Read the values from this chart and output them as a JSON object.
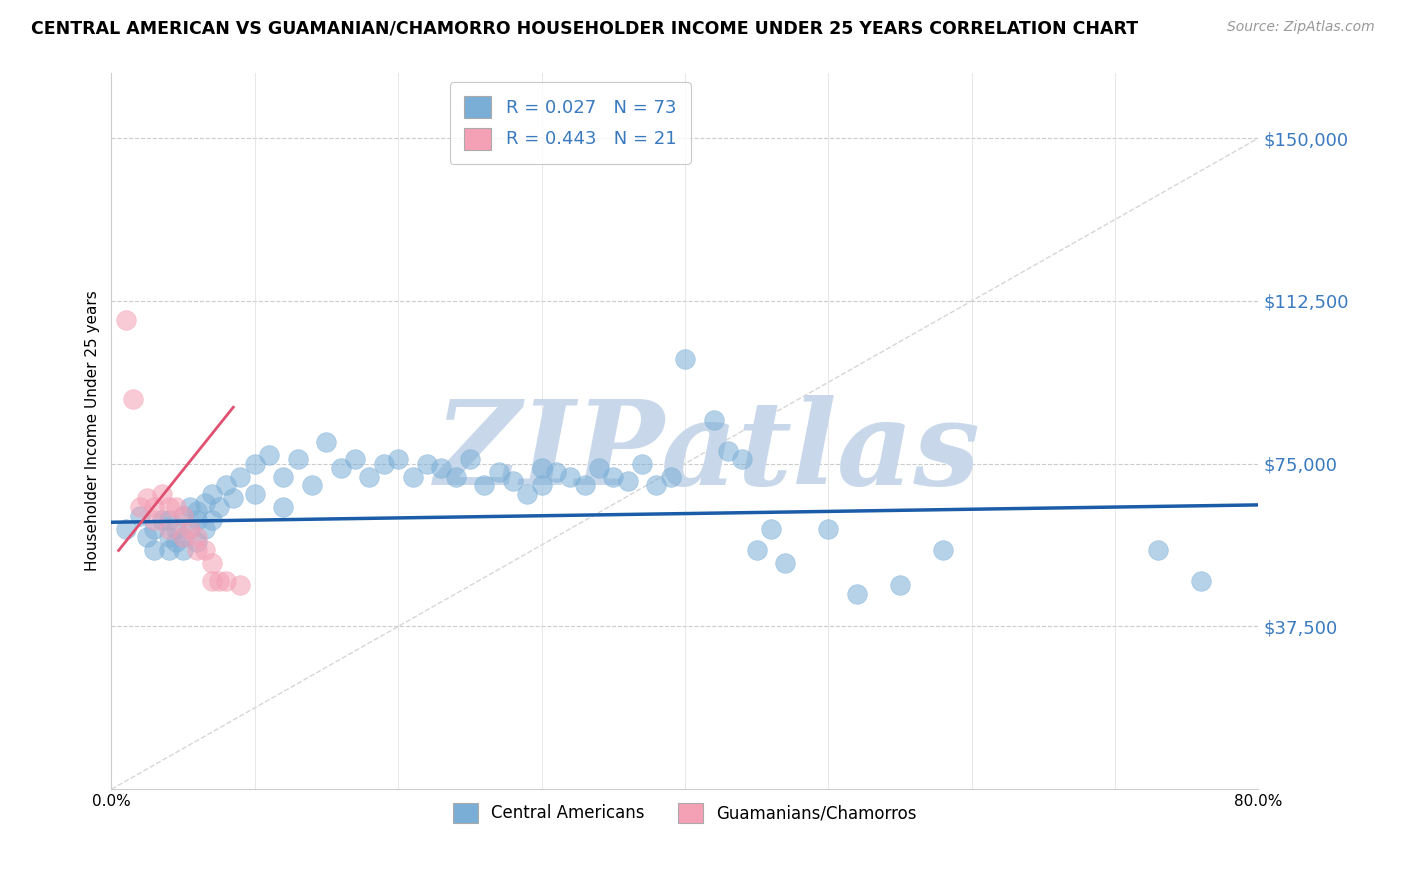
{
  "title": "CENTRAL AMERICAN VS GUAMANIAN/CHAMORRO HOUSEHOLDER INCOME UNDER 25 YEARS CORRELATION CHART",
  "source": "Source: ZipAtlas.com",
  "ylabel": "Householder Income Under 25 years",
  "xlim": [
    0.0,
    0.8
  ],
  "ylim": [
    0,
    165000
  ],
  "yticks": [
    0,
    37500,
    75000,
    112500,
    150000
  ],
  "ytick_labels": [
    "",
    "$37,500",
    "$75,000",
    "$112,500",
    "$150,000"
  ],
  "xticks": [
    0.0,
    0.1,
    0.2,
    0.3,
    0.4,
    0.5,
    0.6,
    0.7,
    0.8
  ],
  "xtick_labels": [
    "0.0%",
    "",
    "",
    "",
    "",
    "",
    "",
    "",
    "80.0%"
  ],
  "blue_R": 0.027,
  "blue_N": 73,
  "pink_R": 0.443,
  "pink_N": 21,
  "blue_color": "#7aaed6",
  "pink_color": "#f4a0b5",
  "trend_blue_color": "#1a5ca8",
  "trend_pink_color": "#e05070",
  "text_blue": "#3a7abf",
  "watermark_text": "ZIPatlas",
  "watermark_color": "#c8d8ea",
  "blue_scatter_x": [
    0.01,
    0.02,
    0.025,
    0.03,
    0.03,
    0.035,
    0.04,
    0.04,
    0.04,
    0.045,
    0.045,
    0.05,
    0.05,
    0.05,
    0.055,
    0.055,
    0.06,
    0.06,
    0.06,
    0.065,
    0.065,
    0.07,
    0.07,
    0.075,
    0.08,
    0.085,
    0.09,
    0.1,
    0.1,
    0.11,
    0.12,
    0.12,
    0.13,
    0.14,
    0.15,
    0.16,
    0.17,
    0.18,
    0.19,
    0.2,
    0.21,
    0.22,
    0.23,
    0.24,
    0.25,
    0.26,
    0.27,
    0.28,
    0.29,
    0.3,
    0.3,
    0.31,
    0.32,
    0.33,
    0.34,
    0.35,
    0.36,
    0.37,
    0.38,
    0.39,
    0.4,
    0.42,
    0.43,
    0.44,
    0.45,
    0.46,
    0.47,
    0.5,
    0.52,
    0.55,
    0.58,
    0.73,
    0.76
  ],
  "blue_scatter_y": [
    60000,
    63000,
    58000,
    60000,
    55000,
    62000,
    58000,
    55000,
    62000,
    60000,
    57000,
    63000,
    58000,
    55000,
    65000,
    60000,
    62000,
    57000,
    64000,
    66000,
    60000,
    68000,
    62000,
    65000,
    70000,
    67000,
    72000,
    75000,
    68000,
    77000,
    72000,
    65000,
    76000,
    70000,
    80000,
    74000,
    76000,
    72000,
    75000,
    76000,
    72000,
    75000,
    74000,
    72000,
    76000,
    70000,
    73000,
    71000,
    68000,
    74000,
    70000,
    73000,
    72000,
    70000,
    74000,
    72000,
    71000,
    75000,
    70000,
    72000,
    99000,
    85000,
    78000,
    76000,
    55000,
    60000,
    52000,
    60000,
    45000,
    47000,
    55000,
    55000,
    48000
  ],
  "pink_scatter_x": [
    0.01,
    0.015,
    0.02,
    0.025,
    0.03,
    0.03,
    0.035,
    0.04,
    0.04,
    0.045,
    0.05,
    0.05,
    0.055,
    0.06,
    0.06,
    0.065,
    0.07,
    0.07,
    0.075,
    0.08,
    0.09
  ],
  "pink_scatter_y": [
    108000,
    90000,
    65000,
    67000,
    65000,
    62000,
    68000,
    65000,
    60000,
    65000,
    63000,
    58000,
    60000,
    58000,
    55000,
    55000,
    52000,
    48000,
    48000,
    48000,
    47000
  ],
  "blue_trend_x0": 0.0,
  "blue_trend_x1": 0.8,
  "blue_trend_y0": 61500,
  "blue_trend_y1": 65500,
  "pink_trend_x0": 0.005,
  "pink_trend_x1": 0.085,
  "pink_trend_y0": 55000,
  "pink_trend_y1": 88000,
  "diag_line_color": "#cccccc"
}
